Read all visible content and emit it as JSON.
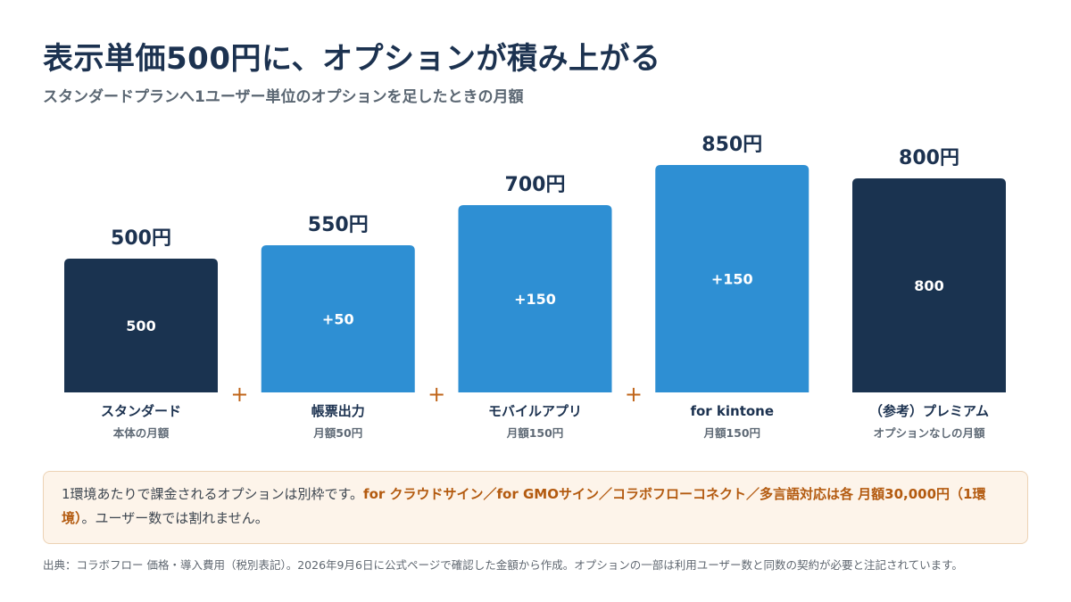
{
  "title": "表示単価500円に、オプションが積み上がる",
  "subtitle": "スタンダードプランへ1ユーザー単位のオプションを足したときの月額",
  "colors": {
    "dark": "#1a3350",
    "light": "#2e8fd3",
    "plus": "#c0651a",
    "text": "#1c3250",
    "muted": "#5f6a76"
  },
  "chart_data": {
    "type": "bar",
    "unit": "円",
    "ylim": [
      0,
      850
    ],
    "plus_sign": "+",
    "bars": [
      {
        "name": "スタンダード",
        "sub": "本体の月額",
        "total": 500,
        "total_label": "500円",
        "inner_label": "500",
        "style": "dark"
      },
      {
        "name": "帳票出力",
        "sub": "月額50円",
        "total": 550,
        "total_label": "550円",
        "inner_label": "+50",
        "style": "light"
      },
      {
        "name": "モバイルアプリ",
        "sub": "月額150円",
        "total": 700,
        "total_label": "700円",
        "inner_label": "+150",
        "style": "light"
      },
      {
        "name": "for kintone",
        "sub": "月額150円",
        "total": 850,
        "total_label": "850円",
        "inner_label": "+150",
        "style": "light"
      },
      {
        "name": "（参考）プレミアム",
        "sub": "オプションなしの月額",
        "total": 800,
        "total_label": "800円",
        "inner_label": "800",
        "style": "dark"
      }
    ]
  },
  "note": {
    "part1": "1環境あたりで課金されるオプションは別枠です。",
    "highlight1": "for クラウドサイン／for GMOサイン／コラボフローコネクト／多言語対応は各 月額30,000円（1環境）",
    "part2": "。ユーザー数では割れません。"
  },
  "source": "出典：コラボフロー 価格・導入費用（税別表記）。2026年9月6日に公式ページで確認した金額から作成。オプションの一部は利用ユーザー数と同数の契約が必要と注記されています。"
}
